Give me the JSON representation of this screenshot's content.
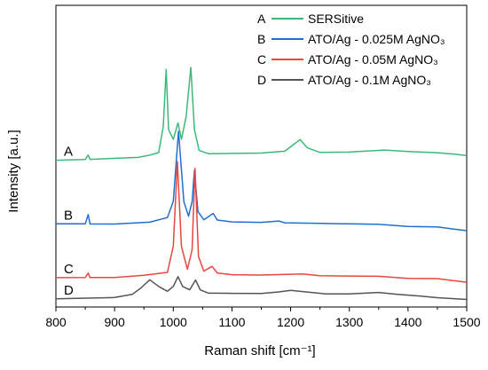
{
  "chart_data": {
    "type": "line",
    "xlabel": "Raman shift [cm⁻¹]",
    "ylabel": "Intensity [a.u.]",
    "xlim": [
      800,
      1500
    ],
    "x_ticks": [
      800,
      900,
      1000,
      1100,
      1200,
      1300,
      1400,
      1500
    ],
    "y_ticks_shown": false,
    "grid": false,
    "legend_position": "top-right",
    "series": [
      {
        "id": "A",
        "label": "A",
        "name": "SERSitive",
        "color": "#3db87a",
        "offset": 85,
        "baseline_slope": 0.004,
        "points": [
          [
            800,
            0
          ],
          [
            850,
            0.3
          ],
          [
            855,
            3
          ],
          [
            858,
            0.3
          ],
          [
            940,
            1.2
          ],
          [
            960,
            2.5
          ],
          [
            975,
            4
          ],
          [
            983,
            20
          ],
          [
            988,
            55
          ],
          [
            992,
            18
          ],
          [
            1000,
            12
          ],
          [
            1008,
            22
          ],
          [
            1014,
            12
          ],
          [
            1022,
            26
          ],
          [
            1030,
            56
          ],
          [
            1036,
            18
          ],
          [
            1044,
            5
          ],
          [
            1060,
            3
          ],
          [
            1100,
            3
          ],
          [
            1150,
            3
          ],
          [
            1190,
            4
          ],
          [
            1205,
            8
          ],
          [
            1216,
            11
          ],
          [
            1228,
            6
          ],
          [
            1250,
            3
          ],
          [
            1300,
            3
          ],
          [
            1360,
            4
          ],
          [
            1400,
            3
          ],
          [
            1450,
            2
          ],
          [
            1480,
            1
          ],
          [
            1500,
            0
          ]
        ]
      },
      {
        "id": "B",
        "label": "B",
        "name": "ATO/Ag - 0.025M AgNO₃",
        "color": "#1f6fd1",
        "offset": 46,
        "baseline_slope": -0.006,
        "points": [
          [
            800,
            0
          ],
          [
            850,
            0.3
          ],
          [
            855,
            6
          ],
          [
            858,
            0.3
          ],
          [
            900,
            0.5
          ],
          [
            960,
            2
          ],
          [
            990,
            5
          ],
          [
            1000,
            15
          ],
          [
            1009,
            58
          ],
          [
            1018,
            15
          ],
          [
            1026,
            6
          ],
          [
            1032,
            15
          ],
          [
            1036,
            34
          ],
          [
            1042,
            9
          ],
          [
            1052,
            4
          ],
          [
            1068,
            8
          ],
          [
            1075,
            4
          ],
          [
            1100,
            3
          ],
          [
            1150,
            3
          ],
          [
            1180,
            4
          ],
          [
            1190,
            3
          ],
          [
            1250,
            3
          ],
          [
            1300,
            3
          ],
          [
            1350,
            3
          ],
          [
            1400,
            2
          ],
          [
            1450,
            2
          ],
          [
            1500,
            0
          ]
        ]
      },
      {
        "id": "C",
        "label": "C",
        "name": "ATO/Ag - 0.05M AgNO₃",
        "color": "#e8463f",
        "offset": 13,
        "baseline_slope": -0.004,
        "points": [
          [
            800,
            0
          ],
          [
            850,
            0.3
          ],
          [
            855,
            3
          ],
          [
            858,
            0.3
          ],
          [
            900,
            0.5
          ],
          [
            950,
            2
          ],
          [
            990,
            4
          ],
          [
            1000,
            20
          ],
          [
            1007,
            72
          ],
          [
            1014,
            20
          ],
          [
            1024,
            6
          ],
          [
            1032,
            18
          ],
          [
            1037,
            68
          ],
          [
            1043,
            14
          ],
          [
            1052,
            5
          ],
          [
            1066,
            8
          ],
          [
            1075,
            4
          ],
          [
            1100,
            3
          ],
          [
            1150,
            3
          ],
          [
            1220,
            4
          ],
          [
            1250,
            3
          ],
          [
            1300,
            3
          ],
          [
            1350,
            3
          ],
          [
            1400,
            2
          ],
          [
            1450,
            2
          ],
          [
            1500,
            0
          ]
        ]
      },
      {
        "id": "D",
        "label": "D",
        "name": "ATO/Ag - 0.1M AgNO₃",
        "color": "#555555",
        "offset": 0,
        "baseline_slope": -0.002,
        "points": [
          [
            800,
            0
          ],
          [
            900,
            1
          ],
          [
            930,
            3
          ],
          [
            945,
            7
          ],
          [
            960,
            12
          ],
          [
            975,
            8
          ],
          [
            990,
            5
          ],
          [
            1000,
            8
          ],
          [
            1008,
            14
          ],
          [
            1016,
            8
          ],
          [
            1028,
            6
          ],
          [
            1038,
            12
          ],
          [
            1046,
            6
          ],
          [
            1060,
            4
          ],
          [
            1100,
            4
          ],
          [
            1150,
            4
          ],
          [
            1180,
            5
          ],
          [
            1200,
            6
          ],
          [
            1230,
            5
          ],
          [
            1260,
            4
          ],
          [
            1300,
            4
          ],
          [
            1350,
            5
          ],
          [
            1380,
            4
          ],
          [
            1420,
            3
          ],
          [
            1450,
            2
          ],
          [
            1500,
            1
          ]
        ]
      }
    ]
  }
}
